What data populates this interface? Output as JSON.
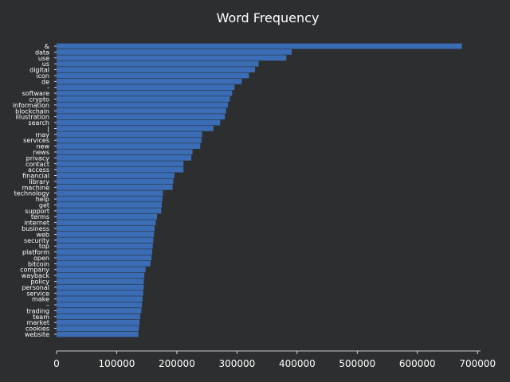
{
  "chart_data": {
    "type": "bar",
    "orientation": "horizontal",
    "title": "Word Frequency",
    "xlabel": "",
    "ylabel": "",
    "xlim": [
      0,
      705000
    ],
    "xticks": [
      0,
      100000,
      200000,
      300000,
      400000,
      500000,
      600000,
      700000
    ],
    "xtick_labels": [
      "0",
      "100000",
      "200000",
      "300000",
      "400000",
      "500000",
      "600000",
      "700000"
    ],
    "grid": false,
    "bar_color": "#3a6db5",
    "background_color": "#2d2e30",
    "text_color": "#ffffff",
    "categories": [
      "&",
      "data",
      "use",
      "us",
      "digital",
      "icon",
      "de",
      "-",
      "software",
      "crypto",
      "information",
      "blockchain",
      "illustration",
      "search",
      "|",
      "may",
      "services",
      "new",
      "news",
      "privacy",
      "contact",
      "access",
      "financial",
      "library",
      "machine",
      "technology",
      "help",
      "get",
      "support",
      "terms",
      "internet",
      "business",
      "web",
      "security",
      "top",
      "platform",
      "open",
      "bitcoin",
      "company",
      "wayback",
      "policy",
      "personal",
      "service",
      "make",
      "–",
      "trading",
      "team",
      "market",
      "cookies",
      "website"
    ],
    "values": [
      674000,
      391000,
      382000,
      336000,
      330000,
      320000,
      308000,
      296000,
      292000,
      288000,
      285000,
      282000,
      280000,
      272000,
      261000,
      242000,
      241000,
      239000,
      226000,
      224000,
      211000,
      211000,
      196000,
      194000,
      193000,
      177000,
      176000,
      175000,
      174000,
      167000,
      165000,
      163000,
      162000,
      161000,
      160000,
      159000,
      158000,
      156000,
      148000,
      146000,
      145000,
      145000,
      144000,
      143000,
      142000,
      141000,
      139000,
      138000,
      137000,
      136000
    ]
  }
}
